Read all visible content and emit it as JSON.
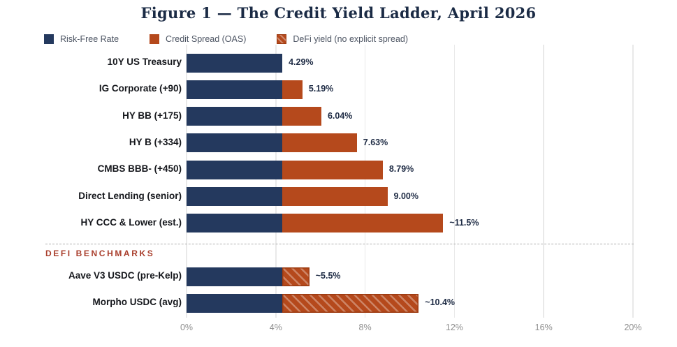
{
  "title": "Figure 1 — The Credit Yield Ladder, April 2026",
  "legend": [
    {
      "label": "Risk-Free Rate",
      "swatch": "navy-square-icon"
    },
    {
      "label": "Credit Spread (OAS)",
      "swatch": "orange-square-icon"
    },
    {
      "label": "DeFi yield (no explicit spread)",
      "swatch": "hatched-orange-square-icon"
    }
  ],
  "section_label": "DEFI BENCHMARKS",
  "colors": {
    "navy": "#24395e",
    "orange": "#b5491c",
    "hatch_outline": "#9c3a10",
    "title_navy": "#1b2b45",
    "section_red": "#a93e2c",
    "tick_gray": "#8e8e8e",
    "gridline": "#e9e9e9"
  },
  "chart_data": {
    "type": "bar",
    "orientation": "horizontal",
    "title": "Figure 1 — The Credit Yield Ladder, April 2026",
    "xlim": [
      0,
      20
    ],
    "grid": true,
    "legend_position": "top-left",
    "risk_free_rate": 4.29,
    "ticks": [
      {
        "value": 0,
        "label": "0%"
      },
      {
        "value": 4,
        "label": "4%"
      },
      {
        "value": 8,
        "label": "8%"
      },
      {
        "value": 12,
        "label": "12%"
      },
      {
        "value": 16,
        "label": "16%"
      },
      {
        "value": 20,
        "label": "20%"
      }
    ],
    "rows": [
      {
        "label": "10Y US Treasury",
        "risk_free": 4.29,
        "total": 4.29,
        "value_label": "4.29%",
        "group": "tradfi",
        "spread_style": "solid"
      },
      {
        "label": "IG Corporate (+90)",
        "risk_free": 4.29,
        "total": 5.19,
        "value_label": "5.19%",
        "group": "tradfi",
        "spread_style": "solid"
      },
      {
        "label": "HY BB (+175)",
        "risk_free": 4.29,
        "total": 6.04,
        "value_label": "6.04%",
        "group": "tradfi",
        "spread_style": "solid"
      },
      {
        "label": "HY B (+334)",
        "risk_free": 4.29,
        "total": 7.63,
        "value_label": "7.63%",
        "group": "tradfi",
        "spread_style": "solid"
      },
      {
        "label": "CMBS BBB- (+450)",
        "risk_free": 4.29,
        "total": 8.79,
        "value_label": "8.79%",
        "group": "tradfi",
        "spread_style": "solid"
      },
      {
        "label": "Direct Lending (senior)",
        "risk_free": 4.29,
        "total": 9.0,
        "value_label": "9.00%",
        "group": "tradfi",
        "spread_style": "solid"
      },
      {
        "label": "HY CCC & Lower (est.)",
        "risk_free": 4.29,
        "total": 11.5,
        "value_label": "~11.5%",
        "group": "tradfi",
        "spread_style": "solid"
      },
      {
        "label": "Aave V3 USDC (pre-Kelp)",
        "risk_free": 4.29,
        "total": 5.5,
        "value_label": "~5.5%",
        "group": "defi",
        "spread_style": "hatch"
      },
      {
        "label": "Morpho USDC (avg)",
        "risk_free": 4.29,
        "total": 10.4,
        "value_label": "~10.4%",
        "group": "defi",
        "spread_style": "hatch"
      }
    ]
  }
}
